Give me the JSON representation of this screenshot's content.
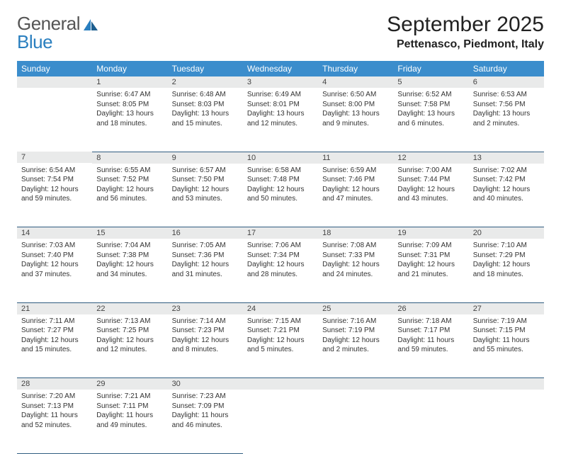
{
  "brand": {
    "part1": "General",
    "part2": "Blue"
  },
  "title": "September 2025",
  "location": "Pettenasco, Piedmont, Italy",
  "colors": {
    "header_bg": "#3b8dcc",
    "header_text": "#ffffff",
    "daynum_bg": "#e9eaea",
    "rule": "#2f5c80",
    "logo_blue": "#2a7fbf"
  },
  "weekdays": [
    "Sunday",
    "Monday",
    "Tuesday",
    "Wednesday",
    "Thursday",
    "Friday",
    "Saturday"
  ],
  "weeks": [
    [
      {
        "n": "",
        "lines": []
      },
      {
        "n": "1",
        "lines": [
          "Sunrise: 6:47 AM",
          "Sunset: 8:05 PM",
          "Daylight: 13 hours and 18 minutes."
        ]
      },
      {
        "n": "2",
        "lines": [
          "Sunrise: 6:48 AM",
          "Sunset: 8:03 PM",
          "Daylight: 13 hours and 15 minutes."
        ]
      },
      {
        "n": "3",
        "lines": [
          "Sunrise: 6:49 AM",
          "Sunset: 8:01 PM",
          "Daylight: 13 hours and 12 minutes."
        ]
      },
      {
        "n": "4",
        "lines": [
          "Sunrise: 6:50 AM",
          "Sunset: 8:00 PM",
          "Daylight: 13 hours and 9 minutes."
        ]
      },
      {
        "n": "5",
        "lines": [
          "Sunrise: 6:52 AM",
          "Sunset: 7:58 PM",
          "Daylight: 13 hours and 6 minutes."
        ]
      },
      {
        "n": "6",
        "lines": [
          "Sunrise: 6:53 AM",
          "Sunset: 7:56 PM",
          "Daylight: 13 hours and 2 minutes."
        ]
      }
    ],
    [
      {
        "n": "7",
        "lines": [
          "Sunrise: 6:54 AM",
          "Sunset: 7:54 PM",
          "Daylight: 12 hours and 59 minutes."
        ]
      },
      {
        "n": "8",
        "lines": [
          "Sunrise: 6:55 AM",
          "Sunset: 7:52 PM",
          "Daylight: 12 hours and 56 minutes."
        ]
      },
      {
        "n": "9",
        "lines": [
          "Sunrise: 6:57 AM",
          "Sunset: 7:50 PM",
          "Daylight: 12 hours and 53 minutes."
        ]
      },
      {
        "n": "10",
        "lines": [
          "Sunrise: 6:58 AM",
          "Sunset: 7:48 PM",
          "Daylight: 12 hours and 50 minutes."
        ]
      },
      {
        "n": "11",
        "lines": [
          "Sunrise: 6:59 AM",
          "Sunset: 7:46 PM",
          "Daylight: 12 hours and 47 minutes."
        ]
      },
      {
        "n": "12",
        "lines": [
          "Sunrise: 7:00 AM",
          "Sunset: 7:44 PM",
          "Daylight: 12 hours and 43 minutes."
        ]
      },
      {
        "n": "13",
        "lines": [
          "Sunrise: 7:02 AM",
          "Sunset: 7:42 PM",
          "Daylight: 12 hours and 40 minutes."
        ]
      }
    ],
    [
      {
        "n": "14",
        "lines": [
          "Sunrise: 7:03 AM",
          "Sunset: 7:40 PM",
          "Daylight: 12 hours and 37 minutes."
        ]
      },
      {
        "n": "15",
        "lines": [
          "Sunrise: 7:04 AM",
          "Sunset: 7:38 PM",
          "Daylight: 12 hours and 34 minutes."
        ]
      },
      {
        "n": "16",
        "lines": [
          "Sunrise: 7:05 AM",
          "Sunset: 7:36 PM",
          "Daylight: 12 hours and 31 minutes."
        ]
      },
      {
        "n": "17",
        "lines": [
          "Sunrise: 7:06 AM",
          "Sunset: 7:34 PM",
          "Daylight: 12 hours and 28 minutes."
        ]
      },
      {
        "n": "18",
        "lines": [
          "Sunrise: 7:08 AM",
          "Sunset: 7:33 PM",
          "Daylight: 12 hours and 24 minutes."
        ]
      },
      {
        "n": "19",
        "lines": [
          "Sunrise: 7:09 AM",
          "Sunset: 7:31 PM",
          "Daylight: 12 hours and 21 minutes."
        ]
      },
      {
        "n": "20",
        "lines": [
          "Sunrise: 7:10 AM",
          "Sunset: 7:29 PM",
          "Daylight: 12 hours and 18 minutes."
        ]
      }
    ],
    [
      {
        "n": "21",
        "lines": [
          "Sunrise: 7:11 AM",
          "Sunset: 7:27 PM",
          "Daylight: 12 hours and 15 minutes."
        ]
      },
      {
        "n": "22",
        "lines": [
          "Sunrise: 7:13 AM",
          "Sunset: 7:25 PM",
          "Daylight: 12 hours and 12 minutes."
        ]
      },
      {
        "n": "23",
        "lines": [
          "Sunrise: 7:14 AM",
          "Sunset: 7:23 PM",
          "Daylight: 12 hours and 8 minutes."
        ]
      },
      {
        "n": "24",
        "lines": [
          "Sunrise: 7:15 AM",
          "Sunset: 7:21 PM",
          "Daylight: 12 hours and 5 minutes."
        ]
      },
      {
        "n": "25",
        "lines": [
          "Sunrise: 7:16 AM",
          "Sunset: 7:19 PM",
          "Daylight: 12 hours and 2 minutes."
        ]
      },
      {
        "n": "26",
        "lines": [
          "Sunrise: 7:18 AM",
          "Sunset: 7:17 PM",
          "Daylight: 11 hours and 59 minutes."
        ]
      },
      {
        "n": "27",
        "lines": [
          "Sunrise: 7:19 AM",
          "Sunset: 7:15 PM",
          "Daylight: 11 hours and 55 minutes."
        ]
      }
    ],
    [
      {
        "n": "28",
        "lines": [
          "Sunrise: 7:20 AM",
          "Sunset: 7:13 PM",
          "Daylight: 11 hours and 52 minutes."
        ]
      },
      {
        "n": "29",
        "lines": [
          "Sunrise: 7:21 AM",
          "Sunset: 7:11 PM",
          "Daylight: 11 hours and 49 minutes."
        ]
      },
      {
        "n": "30",
        "lines": [
          "Sunrise: 7:23 AM",
          "Sunset: 7:09 PM",
          "Daylight: 11 hours and 46 minutes."
        ]
      },
      {
        "n": "",
        "lines": []
      },
      {
        "n": "",
        "lines": []
      },
      {
        "n": "",
        "lines": []
      },
      {
        "n": "",
        "lines": []
      }
    ]
  ]
}
